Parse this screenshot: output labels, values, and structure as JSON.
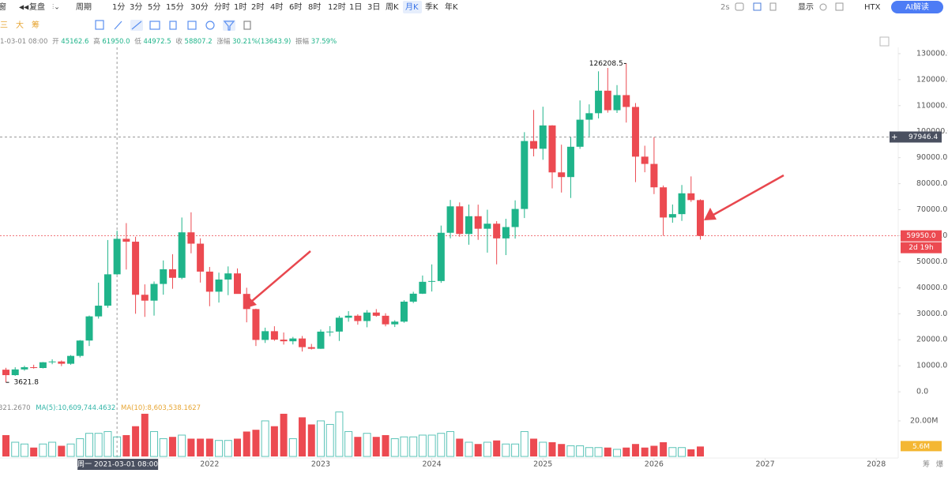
{
  "toolbar": {
    "left_cut": "窗",
    "replay": "复盘",
    "period": "周期",
    "periods": [
      "1分",
      "3分",
      "5分",
      "15分",
      "30分",
      "分时",
      "1时",
      "2时",
      "4时",
      "6时",
      "8时",
      "12时",
      "1日",
      "3日",
      "周K",
      "月K",
      "季K",
      "年K"
    ],
    "active": "月K",
    "refresh": "2s",
    "display": "显示",
    "exchange": "HTX",
    "ai": "AI解读"
  },
  "subtoolbar": {
    "tools": [
      "三",
      "大",
      "筹"
    ]
  },
  "info": {
    "date": "1-03-01 08:00",
    "open_label": "开",
    "open": "45162.6",
    "high_label": "高",
    "high": "61950.0",
    "low_label": "低",
    "low": "44972.5",
    "close_label": "收",
    "close": "58807.2",
    "change_label": "涨幅",
    "change": "30.21%(13643.9)",
    "amplitude_label": "振幅",
    "amplitude": "37.59%"
  },
  "volume_legend": {
    "vol_cut": "321.2670",
    "ma5": "MA(5):10,609,744.4632",
    "ma10": "MA(10):8,603,538.1627"
  },
  "side_tools": [
    "筹",
    "爆"
  ],
  "chart_data": {
    "type": "candlestick",
    "x": [
      "2020-03",
      "2020-04",
      "2020-05",
      "2020-06",
      "2020-07",
      "2020-08",
      "2020-09",
      "2020-10",
      "2020-11",
      "2020-12",
      "2021-01",
      "2021-02",
      "2021-03",
      "2021-04",
      "2021-05",
      "2021-06",
      "2021-07",
      "2021-08",
      "2021-09",
      "2021-10",
      "2021-11",
      "2021-12",
      "2022-01",
      "2022-02",
      "2022-03",
      "2022-04",
      "2022-05",
      "2022-06",
      "2022-07",
      "2022-08",
      "2022-09",
      "2022-10",
      "2022-11",
      "2022-12",
      "2023-01",
      "2023-02",
      "2023-03",
      "2023-04",
      "2023-05",
      "2023-06",
      "2023-07",
      "2023-08",
      "2023-09",
      "2023-10",
      "2023-11",
      "2023-12",
      "2024-01",
      "2024-02",
      "2024-03",
      "2024-04",
      "2024-05",
      "2024-06",
      "2024-07",
      "2024-08",
      "2024-09",
      "2024-10",
      "2024-11",
      "2024-12",
      "2025-01",
      "2025-02",
      "2025-03",
      "2025-04",
      "2025-05",
      "2025-06",
      "2025-07",
      "2025-08",
      "2025-09",
      "2025-10",
      "2025-11",
      "2025-12",
      "2026-01",
      "2026-02",
      "2026-03",
      "2026-04",
      "2026-05",
      "2026-06"
    ],
    "open": [
      8500,
      6400,
      8600,
      9450,
      9140,
      11350,
      11650,
      10780,
      13800,
      19700,
      28990,
      33110,
      45162.6,
      58807,
      57700,
      37300,
      35040,
      41460,
      47100,
      43820,
      61300,
      56950,
      46200,
      38480,
      43160,
      45510,
      37630,
      31800,
      19940,
      23300,
      20050,
      19420,
      20490,
      17160,
      16540,
      23130,
      23150,
      28480,
      29250,
      27200,
      30470,
      29230,
      25940,
      26970,
      34650,
      37710,
      42280,
      42580,
      61130,
      71290,
      60670,
      67500,
      62680,
      64620,
      58970,
      63330,
      70290,
      96400,
      93430,
      102400,
      84350,
      82550,
      94200,
      104600,
      107100,
      115750,
      108250,
      114050,
      109500,
      90400,
      87600,
      78600,
      67000,
      68300,
      76300,
      73700
    ],
    "high": [
      9200,
      9450,
      10000,
      10400,
      11450,
      12480,
      12050,
      14100,
      19900,
      29300,
      41950,
      58350,
      61950,
      64850,
      59600,
      41300,
      42400,
      50500,
      52900,
      67000,
      69000,
      59000,
      47990,
      45800,
      48200,
      47450,
      40000,
      31950,
      24650,
      25200,
      22800,
      21100,
      21450,
      18400,
      23950,
      25250,
      29200,
      31000,
      29820,
      31400,
      31800,
      30200,
      27500,
      35200,
      38450,
      44700,
      48970,
      63900,
      73750,
      72800,
      71980,
      71950,
      70000,
      65600,
      66500,
      73600,
      99800,
      108350,
      109600,
      102500,
      95000,
      97900,
      112000,
      110500,
      123200,
      124500,
      117900,
      126208.5,
      111000,
      94600,
      97900,
      79300,
      72000,
      79500,
      82800,
      74000
    ],
    "low": [
      3621.8,
      6150,
      8100,
      8900,
      8970,
      10600,
      9880,
      10400,
      13200,
      17600,
      28130,
      32300,
      44972.5,
      47000,
      30000,
      28800,
      29280,
      37330,
      39600,
      43280,
      53250,
      42000,
      32900,
      34300,
      37150,
      37700,
      26700,
      17600,
      18780,
      19600,
      18150,
      18200,
      15480,
      16260,
      16500,
      21350,
      19550,
      26940,
      25810,
      24800,
      28850,
      25160,
      24900,
      26550,
      34100,
      37600,
      38550,
      41880,
      59000,
      59600,
      56550,
      58400,
      53500,
      49000,
      52550,
      58900,
      66800,
      90500,
      89200,
      78200,
      76600,
      74500,
      93400,
      98200,
      105100,
      107300,
      107200,
      103500,
      80600,
      84400,
      76000,
      60000,
      65000,
      65700,
      73000,
      58500
    ],
    "close": [
      6400,
      8600,
      9450,
      9140,
      11350,
      11650,
      10780,
      13800,
      19700,
      28990,
      33110,
      45160,
      58807.2,
      57700,
      37300,
      35040,
      41460,
      47100,
      43820,
      61300,
      56950,
      46200,
      38480,
      43160,
      45510,
      37630,
      31800,
      19940,
      23300,
      20050,
      19420,
      20490,
      17160,
      16540,
      23130,
      23150,
      28480,
      29250,
      27200,
      30470,
      29230,
      25940,
      26970,
      34650,
      37710,
      42280,
      42580,
      61130,
      71290,
      60670,
      67500,
      62680,
      64620,
      58970,
      63330,
      70290,
      96400,
      93430,
      102400,
      84350,
      82550,
      94200,
      104600,
      107100,
      115750,
      108250,
      114050,
      109500,
      90400,
      87600,
      78600,
      67000,
      68300,
      76300,
      73700,
      59950
    ],
    "volume": [
      12000000,
      8000000,
      7000000,
      5000000,
      7000000,
      8000000,
      6000000,
      7000000,
      10000000,
      13000000,
      13000000,
      14000000,
      11000000,
      12000000,
      17000000,
      24000000,
      14000000,
      10000000,
      11000000,
      12000000,
      10000000,
      10000000,
      10000000,
      9000000,
      9000000,
      10000000,
      14000000,
      15000000,
      20000000,
      17000000,
      24000000,
      10000000,
      22000000,
      18000000,
      20000000,
      18000000,
      25000000,
      14000000,
      11000000,
      13000000,
      11000000,
      12000000,
      10000000,
      11000000,
      11000000,
      12000000,
      12000000,
      13000000,
      14000000,
      10000000,
      8000000,
      7000000,
      8000000,
      9000000,
      7000000,
      7000000,
      14000000,
      10000000,
      8000000,
      8000000,
      7000000,
      6000000,
      6000000,
      5000000,
      5000000,
      5000000,
      4000000,
      5000000,
      7000000,
      5000000,
      6000000,
      8000000,
      5000000,
      5000000,
      4000000,
      5600000
    ],
    "up_color": "#1fb48a",
    "down_color": "#ec4a51",
    "ylim": [
      -2700,
      132400
    ],
    "yticks": [
      {
        "value": 0,
        "label": "0.0"
      },
      {
        "value": 10000,
        "label": "10000.0"
      },
      {
        "value": 20000,
        "label": "20000.0"
      },
      {
        "value": 30000,
        "label": "30000.0"
      },
      {
        "value": 40000,
        "label": "40000.0"
      },
      {
        "value": 50000,
        "label": "50000.0"
      },
      {
        "value": 60000,
        "label": "60000.0"
      },
      {
        "value": 70000,
        "label": "70000.0"
      },
      {
        "value": 80000,
        "label": "80000.0"
      },
      {
        "value": 90000,
        "label": "90000.0"
      },
      {
        "value": 100000,
        "label": "100000.0"
      },
      {
        "value": 110000,
        "label": "110000.0"
      },
      {
        "value": 120000,
        "label": "120000.0"
      },
      {
        "value": 130000,
        "label": "130000.0"
      }
    ],
    "y2lim": [
      0,
      32400000
    ],
    "y2ticks": [
      {
        "value": 20000000,
        "label": "20.00M"
      }
    ],
    "xticks": [
      2022,
      2023,
      2024,
      2025,
      2026,
      2027,
      2028
    ],
    "max_label": "126208.5",
    "min_label": "3621.8",
    "last_price_label": "59950.0",
    "countdown": "2d 19h",
    "last_volume_label": "5.6M",
    "crosshair": {
      "x": "2021-03",
      "price": {
        "value": 97946.4,
        "label": "97946.4"
      },
      "date_label": "周一 2021-03-01 08:00"
    }
  }
}
